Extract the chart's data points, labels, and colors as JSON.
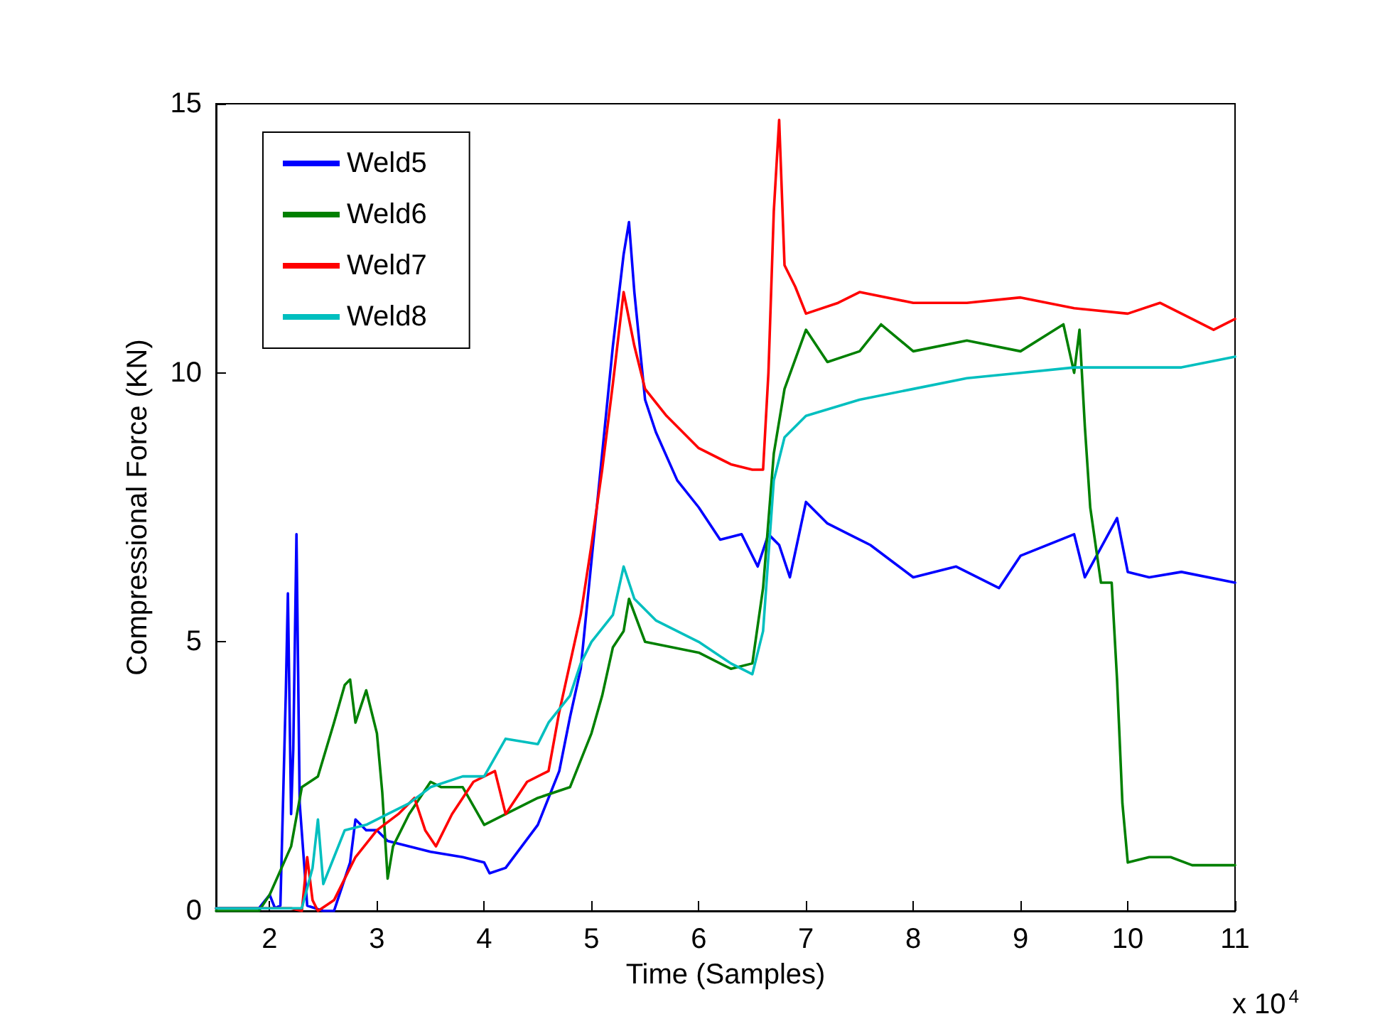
{
  "chart_data": {
    "type": "line",
    "xlabel": "Time (Samples)",
    "ylabel": "Compressional Force (KN)",
    "xlim": [
      1.5,
      11
    ],
    "xticks": [
      2,
      3,
      4,
      5,
      6,
      7,
      8,
      9,
      10,
      11
    ],
    "ylim": [
      0,
      15
    ],
    "yticks": [
      0,
      5,
      10,
      15
    ],
    "grid": false,
    "legend": "top left",
    "marker": "none",
    "line_style": "solid",
    "annotations": [
      "x 10$^{4}$"
    ],
    "series": [
      {
        "name": "Weld5",
        "color": "#0000ff",
        "x": [
          1.5,
          1.9,
          2.0,
          2.05,
          2.1,
          2.15,
          2.17,
          2.2,
          2.22,
          2.25,
          2.28,
          2.35,
          2.5,
          2.6,
          2.75,
          2.8,
          2.9,
          3.0,
          3.1,
          3.5,
          3.8,
          4.0,
          4.05,
          4.2,
          4.5,
          4.7,
          4.8,
          4.9,
          5.0,
          5.1,
          5.2,
          5.3,
          5.35,
          5.4,
          5.5,
          5.6,
          5.8,
          6.0,
          6.2,
          6.4,
          6.55,
          6.65,
          6.75,
          6.85,
          7.0,
          7.2,
          7.4,
          7.6,
          7.8,
          8.0,
          8.4,
          8.8,
          9.0,
          9.5,
          9.6,
          9.9,
          10.0,
          10.2,
          10.5,
          11.0
        ],
        "values": [
          0.05,
          0.05,
          0.3,
          0.05,
          0.1,
          4.0,
          5.9,
          1.8,
          3.0,
          7.0,
          2.0,
          0.1,
          0,
          0,
          0.9,
          1.7,
          1.5,
          1.5,
          1.3,
          1.1,
          1.0,
          0.9,
          0.7,
          0.8,
          1.6,
          2.6,
          3.6,
          4.5,
          6.5,
          8.5,
          10.5,
          12.2,
          12.8,
          11.5,
          9.5,
          8.9,
          8.0,
          7.5,
          6.9,
          7.0,
          6.4,
          7.0,
          6.8,
          6.2,
          7.6,
          7.2,
          7.0,
          6.8,
          6.5,
          6.2,
          6.4,
          6.0,
          6.6,
          7.0,
          6.2,
          7.3,
          6.3,
          6.2,
          6.3,
          6.1
        ]
      },
      {
        "name": "Weld6",
        "color": "#008000",
        "x": [
          1.5,
          1.9,
          2.0,
          2.2,
          2.3,
          2.45,
          2.6,
          2.7,
          2.75,
          2.8,
          2.9,
          3.0,
          3.05,
          3.1,
          3.15,
          3.3,
          3.5,
          3.6,
          3.8,
          4.0,
          4.2,
          4.5,
          4.8,
          5.0,
          5.1,
          5.2,
          5.3,
          5.35,
          5.5,
          6.0,
          6.3,
          6.5,
          6.6,
          6.7,
          6.8,
          7.0,
          7.2,
          7.5,
          7.7,
          8.0,
          8.5,
          9.0,
          9.4,
          9.5,
          9.55,
          9.6,
          9.65,
          9.75,
          9.85,
          9.9,
          9.95,
          10.0,
          10.2,
          10.4,
          10.6,
          11.0
        ],
        "values": [
          0,
          0,
          0.3,
          1.2,
          2.3,
          2.5,
          3.5,
          4.2,
          4.3,
          3.5,
          4.1,
          3.3,
          2.2,
          0.6,
          1.2,
          1.8,
          2.4,
          2.3,
          2.3,
          1.6,
          1.8,
          2.1,
          2.3,
          3.3,
          4.0,
          4.9,
          5.2,
          5.8,
          5.0,
          4.8,
          4.5,
          4.6,
          6.0,
          8.5,
          9.7,
          10.8,
          10.2,
          10.4,
          10.9,
          10.4,
          10.6,
          10.4,
          10.9,
          10.0,
          10.8,
          9.0,
          7.5,
          6.1,
          6.1,
          4.3,
          2.0,
          0.9,
          1.0,
          1.0,
          0.85,
          0.85
        ]
      },
      {
        "name": "Weld7",
        "color": "#ff0000",
        "x": [
          1.5,
          2.2,
          2.3,
          2.35,
          2.4,
          2.45,
          2.6,
          2.8,
          3.0,
          3.2,
          3.35,
          3.45,
          3.55,
          3.7,
          3.9,
          4.1,
          4.2,
          4.4,
          4.6,
          4.7,
          4.8,
          4.9,
          5.0,
          5.1,
          5.2,
          5.3,
          5.4,
          5.5,
          5.7,
          6.0,
          6.3,
          6.5,
          6.6,
          6.65,
          6.7,
          6.75,
          6.8,
          6.9,
          7.0,
          7.3,
          7.5,
          8.0,
          8.5,
          9.0,
          9.5,
          10.0,
          10.3,
          10.6,
          10.8,
          11.0
        ],
        "values": [
          0.05,
          0.05,
          0,
          1.0,
          0.2,
          0,
          0.2,
          1.0,
          1.5,
          1.8,
          2.1,
          1.5,
          1.2,
          1.8,
          2.4,
          2.6,
          1.8,
          2.4,
          2.6,
          3.7,
          4.6,
          5.5,
          6.8,
          8.2,
          9.8,
          11.5,
          10.5,
          9.7,
          9.2,
          8.6,
          8.3,
          8.2,
          8.2,
          10.0,
          13.0,
          14.7,
          12.0,
          11.6,
          11.1,
          11.3,
          11.5,
          11.3,
          11.3,
          11.4,
          11.2,
          11.1,
          11.3,
          11.0,
          10.8,
          11.0
        ]
      },
      {
        "name": "Weld8",
        "color": "#00bfbf",
        "x": [
          1.5,
          2.3,
          2.4,
          2.45,
          2.5,
          2.6,
          2.7,
          2.9,
          3.1,
          3.3,
          3.5,
          3.8,
          4.0,
          4.2,
          4.5,
          4.6,
          4.8,
          4.9,
          5.0,
          5.2,
          5.3,
          5.4,
          5.6,
          6.0,
          6.3,
          6.5,
          6.6,
          6.7,
          6.8,
          7.0,
          7.5,
          8.0,
          8.5,
          9.0,
          9.5,
          10.0,
          10.5,
          11.0
        ],
        "values": [
          0.05,
          0.05,
          0.8,
          1.7,
          0.5,
          1.0,
          1.5,
          1.6,
          1.8,
          2.0,
          2.3,
          2.5,
          2.5,
          3.2,
          3.1,
          3.5,
          4.0,
          4.6,
          5.0,
          5.5,
          6.4,
          5.8,
          5.4,
          5.0,
          4.6,
          4.4,
          5.2,
          8.0,
          8.8,
          9.2,
          9.5,
          9.7,
          9.9,
          10.0,
          10.1,
          10.1,
          10.1,
          10.3
        ]
      }
    ]
  }
}
